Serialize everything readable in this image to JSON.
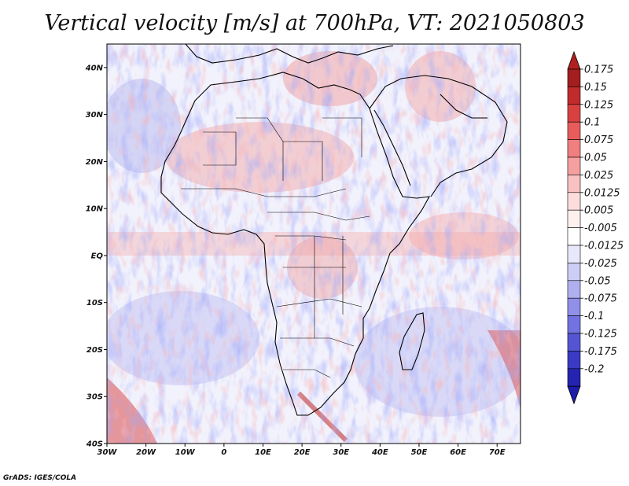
{
  "title": "Vertical velocity [m/s] at 700hPa, VT: 2021050803",
  "map": {
    "field": "Vertical velocity",
    "units": "m/s",
    "level": "700hPa",
    "valid_time": "2021050803",
    "lon_range": [
      -30,
      76
    ],
    "lat_range": [
      -40,
      45
    ],
    "lon_ticks": [
      {
        "value": -30,
        "label": "30W"
      },
      {
        "value": -20,
        "label": "20W"
      },
      {
        "value": -10,
        "label": "10W"
      },
      {
        "value": 0,
        "label": "0"
      },
      {
        "value": 10,
        "label": "10E"
      },
      {
        "value": 20,
        "label": "20E"
      },
      {
        "value": 30,
        "label": "30E"
      },
      {
        "value": 40,
        "label": "40E"
      },
      {
        "value": 50,
        "label": "50E"
      },
      {
        "value": 60,
        "label": "60E"
      },
      {
        "value": 70,
        "label": "70E"
      }
    ],
    "lat_ticks": [
      {
        "value": 40,
        "label": "40N"
      },
      {
        "value": 30,
        "label": "30N"
      },
      {
        "value": 20,
        "label": "20N"
      },
      {
        "value": 10,
        "label": "10N"
      },
      {
        "value": 0,
        "label": "EQ"
      },
      {
        "value": -10,
        "label": "10S"
      },
      {
        "value": -20,
        "label": "20S"
      },
      {
        "value": -30,
        "label": "30S"
      },
      {
        "value": -40,
        "label": "40S"
      }
    ]
  },
  "colorbar": {
    "levels": [
      {
        "label": "0.175",
        "color": "#a31e1e"
      },
      {
        "label": "0.15",
        "color": "#c02b2b"
      },
      {
        "label": "0.125",
        "color": "#d94141"
      },
      {
        "label": "0.1",
        "color": "#e85c5c"
      },
      {
        "label": "0.075",
        "color": "#f07f7f"
      },
      {
        "label": "0.05",
        "color": "#f5a0a0"
      },
      {
        "label": "0.025",
        "color": "#f9c2c2"
      },
      {
        "label": "0.0125",
        "color": "#fcdcdc"
      },
      {
        "label": "0.005",
        "color": "#fff0f0"
      },
      {
        "label": "-0.005",
        "color": "#ffffff"
      },
      {
        "label": "-0.0125",
        "color": "#e8e8fb"
      },
      {
        "label": "-0.025",
        "color": "#cdcdf6"
      },
      {
        "label": "-0.05",
        "color": "#b0b0f0"
      },
      {
        "label": "-0.075",
        "color": "#9090e8"
      },
      {
        "label": "-0.1",
        "color": "#7272e0"
      },
      {
        "label": "-0.125",
        "color": "#5555d4"
      },
      {
        "label": "-0.175",
        "color": "#3a3ac4"
      },
      {
        "label": "-0.2",
        "color": "#2424b0"
      }
    ],
    "top_triangle_color": "#b02020",
    "bottom_triangle_color": "#1c1ca8"
  },
  "credit": "GrADS: IGES/COLA"
}
